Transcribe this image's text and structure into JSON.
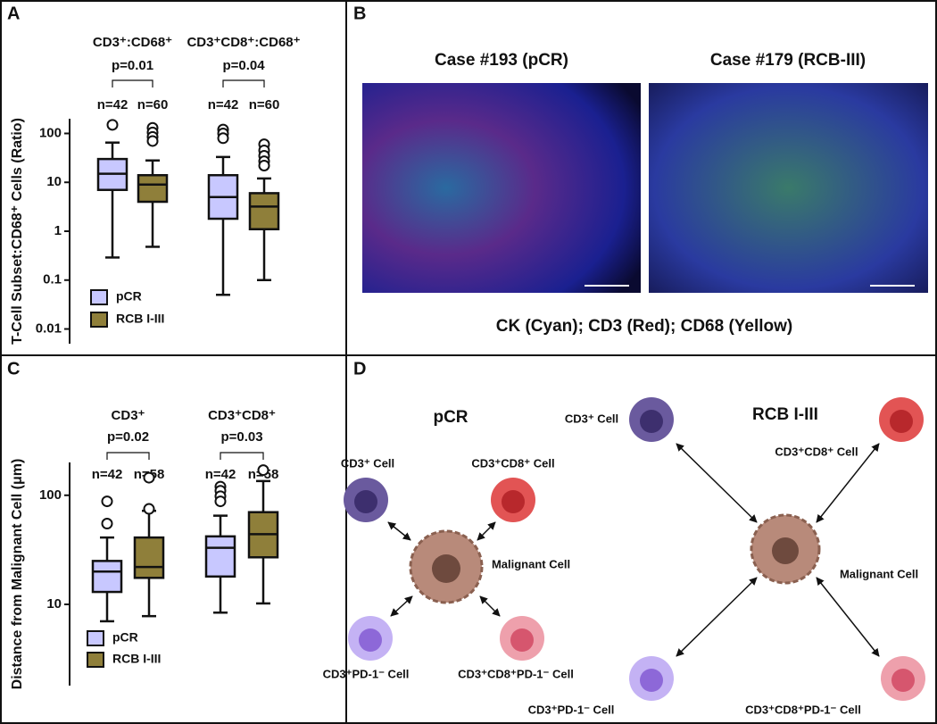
{
  "chart_data": [
    {
      "type": "box",
      "ylabel": "T-Cell Subset:CD68⁺ Cells (Ratio)",
      "log": true,
      "ylim": [
        0.005,
        200
      ],
      "yticks": [
        0.01,
        0.1,
        1,
        10,
        100
      ],
      "groups": [
        {
          "label": "CD3⁺:CD68⁺",
          "p": "p=0.01",
          "n": [
            "n=42",
            "n=60"
          ]
        },
        {
          "label": "CD3⁺CD8⁺:CD68⁺",
          "p": "p=0.04",
          "n": [
            "n=42",
            "n=60"
          ]
        }
      ],
      "series": [
        {
          "name": "pCR",
          "color": "#c8c8ff",
          "boxes": [
            {
              "min": 0.29,
              "q1": 7,
              "median": 15,
              "q3": 30,
              "max": 65,
              "outliers": [
                150
              ]
            },
            {
              "min": 0.05,
              "q1": 1.8,
              "median": 5,
              "q3": 14,
              "max": 33,
              "outliers": [
                120,
                100,
                80
              ]
            }
          ]
        },
        {
          "name": "RCB I-III",
          "color": "#8f7f3a",
          "boxes": [
            {
              "min": 0.48,
              "q1": 4,
              "median": 9,
              "q3": 14,
              "max": 28,
              "outliers": [
                130,
                105,
                85,
                70
              ]
            },
            {
              "min": 0.1,
              "q1": 1.1,
              "median": 3.2,
              "q3": 6,
              "max": 12,
              "outliers": [
                60,
                45,
                35,
                27,
                22
              ]
            }
          ]
        }
      ]
    },
    {
      "type": "box",
      "ylabel": "Distance from Malignant Cell (μm)",
      "log": true,
      "ylim": [
        1.8,
        200
      ],
      "yticks": [
        10,
        100
      ],
      "groups": [
        {
          "label": "CD3⁺",
          "p": "p=0.02",
          "n": [
            "n=42",
            "n=58"
          ]
        },
        {
          "label": "CD3⁺CD8⁺",
          "p": "p=0.03",
          "n": [
            "n=42",
            "n=58"
          ]
        }
      ],
      "series": [
        {
          "name": "pCR",
          "color": "#c8c8ff",
          "boxes": [
            {
              "min": 7,
              "q1": 13,
              "median": 20,
              "q3": 25,
              "max": 41,
              "outliers": [
                88,
                55
              ]
            },
            {
              "min": 8.4,
              "q1": 18,
              "median": 33,
              "q3": 42,
              "max": 65,
              "outliers": [
                120,
                110,
                98,
                88
              ]
            }
          ]
        },
        {
          "name": "RCB I-III",
          "color": "#8f7f3a",
          "boxes": [
            {
              "min": 7.8,
              "q1": 17.5,
              "median": 22,
              "q3": 41,
              "max": 72,
              "outliers": [
                145,
                75
              ]
            },
            {
              "min": 10.2,
              "q1": 27,
              "median": 44,
              "q3": 70,
              "max": 135,
              "outliers": [
                170
              ]
            }
          ]
        }
      ]
    }
  ],
  "panel_labels": [
    "A",
    "B",
    "C",
    "D"
  ],
  "images": {
    "captions": [
      "Case #193 (pCR)",
      "Case #179 (RCB-III)"
    ],
    "stain_legend": "CK (Cyan); CD3 (Red); CD68 (Yellow)"
  },
  "diagram": {
    "titles": [
      "pCR",
      "RCB I-III"
    ],
    "labels": [
      "CD3⁺ Cell",
      "CD3⁺CD8⁺ Cell",
      "Malignant Cell",
      "CD3⁺PD-1⁻ Cell",
      "CD3⁺CD8⁺PD-1⁻ Cell"
    ]
  }
}
